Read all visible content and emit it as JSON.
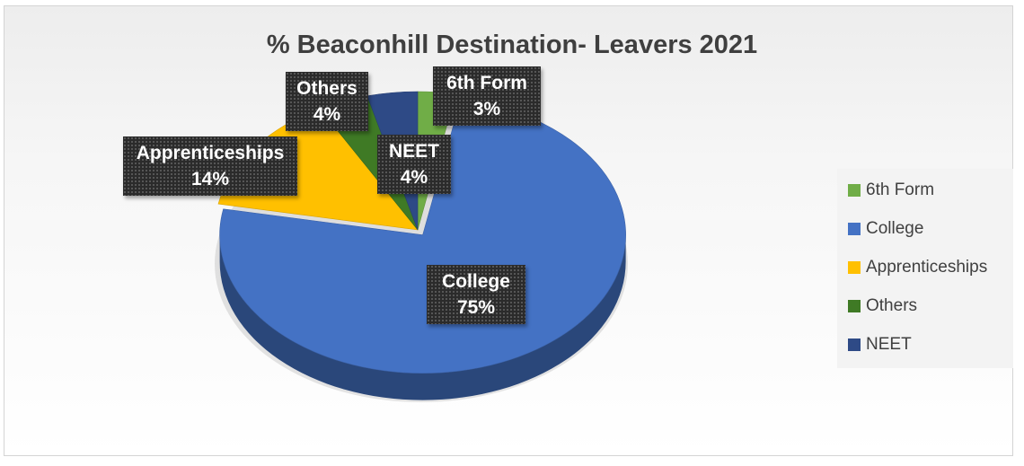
{
  "chart_data": {
    "type": "pie",
    "title": "% Beaconhill Destination- Leavers 2021",
    "categories": [
      "6th Form",
      "College",
      "Apprenticeships",
      "Others",
      "NEET"
    ],
    "values": [
      3,
      75,
      14,
      4,
      4
    ],
    "value_labels": [
      "3%",
      "75%",
      "14%",
      "4%",
      "4%"
    ],
    "colors": [
      "#70ad47",
      "#4472c4",
      "#ffc000",
      "#3f7a25",
      "#2e4a86"
    ],
    "legend_position": "right",
    "style": "3d-exploded"
  }
}
